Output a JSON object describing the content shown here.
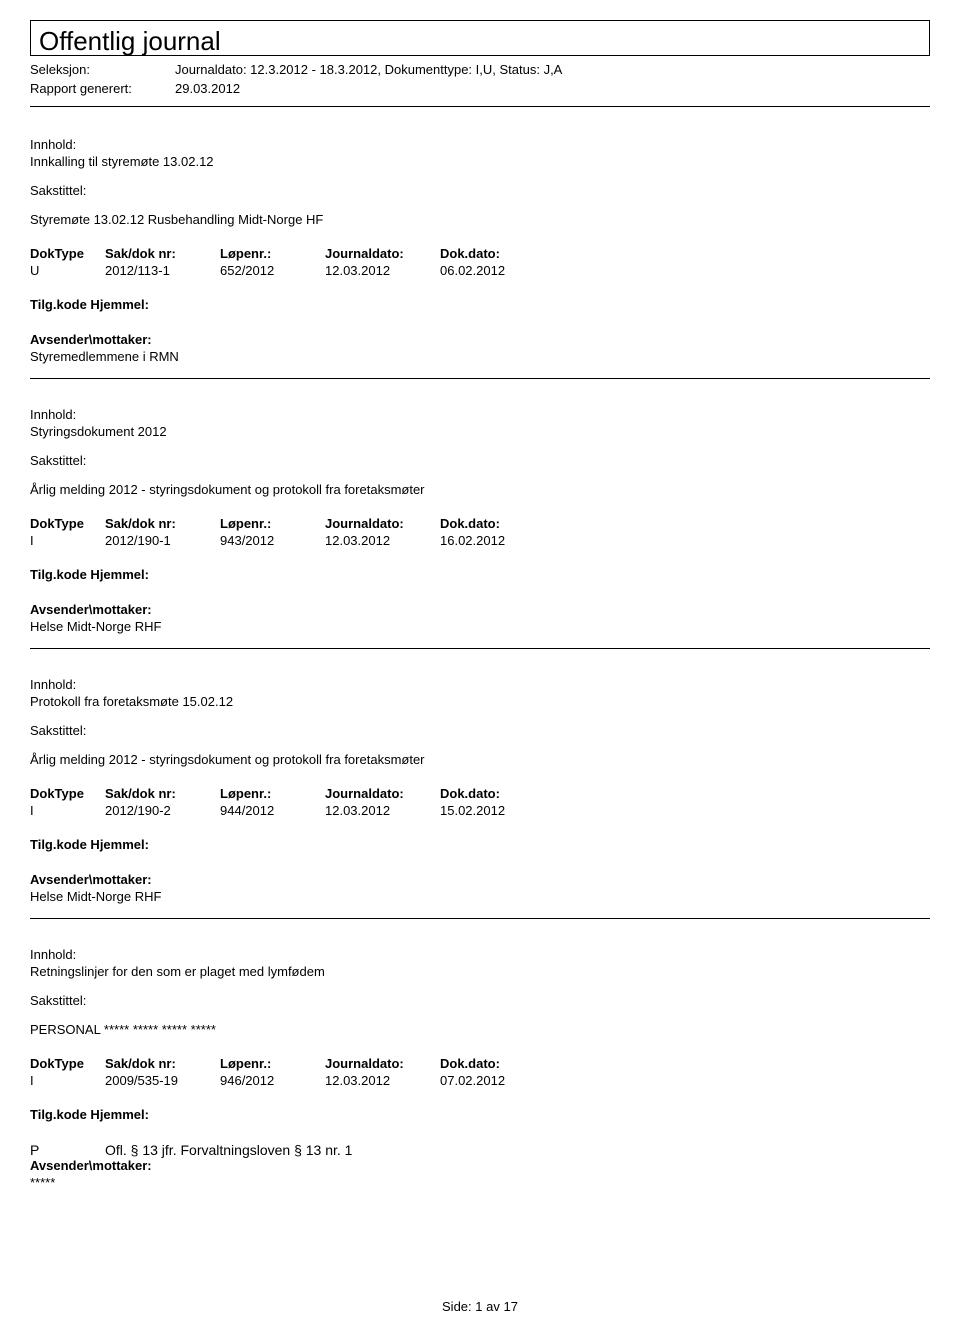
{
  "title": "Offentlig journal",
  "header": {
    "seleksjon_label": "Seleksjon:",
    "seleksjon_value": "Journaldato: 12.3.2012 - 18.3.2012, Dokumenttype: I,U, Status: J,A",
    "rapport_label": "Rapport generert:",
    "rapport_value": "29.03.2012"
  },
  "col_headers": {
    "doktype": "DokType",
    "saknr": "Sak/dok nr:",
    "lopenr": "Løpenr.:",
    "journaldato": "Journaldato:",
    "dokdato": "Dok.dato:"
  },
  "section_labels": {
    "innhold": "Innhold:",
    "sakstittel": "Sakstittel:",
    "tilgkode": "Tilg.kode Hjemmel:",
    "avsender": "Avsender\\mottaker:"
  },
  "entries": [
    {
      "innhold": "Innkalling til styremøte 13.02.12",
      "sakstittel": "Styremøte 13.02.12 Rusbehandling Midt-Norge HF",
      "doktype": "U",
      "saknr": "2012/113-1",
      "lopenr": "652/2012",
      "journaldato": "12.03.2012",
      "dokdato": "06.02.2012",
      "tilg_code": "",
      "tilg_text": "",
      "avsender": "Styremedlemmene i RMN"
    },
    {
      "innhold": "Styringsdokument 2012",
      "sakstittel": "Årlig melding 2012 - styringsdokument og protokoll fra foretaksmøter",
      "doktype": "I",
      "saknr": "2012/190-1",
      "lopenr": "943/2012",
      "journaldato": "12.03.2012",
      "dokdato": "16.02.2012",
      "tilg_code": "",
      "tilg_text": "",
      "avsender": "Helse Midt-Norge RHF"
    },
    {
      "innhold": "Protokoll fra foretaksmøte 15.02.12",
      "sakstittel": "Årlig melding 2012 - styringsdokument og protokoll fra foretaksmøter",
      "doktype": "I",
      "saknr": "2012/190-2",
      "lopenr": "944/2012",
      "journaldato": "12.03.2012",
      "dokdato": "15.02.2012",
      "tilg_code": "",
      "tilg_text": "",
      "avsender": "Helse Midt-Norge RHF"
    },
    {
      "innhold": "Retningslinjer for den som er plaget med lymfødem",
      "sakstittel": "PERSONAL ***** ***** ***** *****",
      "doktype": "I",
      "saknr": "2009/535-19",
      "lopenr": "946/2012",
      "journaldato": "12.03.2012",
      "dokdato": "07.02.2012",
      "tilg_code": "P",
      "tilg_text": "Ofl. § 13 jfr. Forvaltningsloven § 13 nr. 1",
      "avsender": "*****"
    }
  ],
  "footer": {
    "side_label": "Side:",
    "page": "1",
    "av": "av",
    "total": "17"
  }
}
